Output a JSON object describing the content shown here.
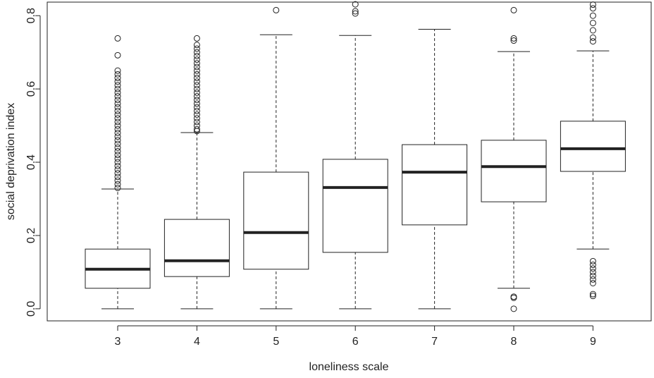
{
  "chart_data": {
    "type": "box",
    "x_label": "loneliness scale",
    "y_label": "social deprivation index",
    "categories": [
      "3",
      "4",
      "5",
      "6",
      "7",
      "8",
      "9"
    ],
    "boxes": [
      {
        "whislo": 0,
        "q1": 0.056,
        "med": 0.108,
        "q3": 0.163,
        "whishi": 0.327,
        "fliers": [
          0.33,
          0.34,
          0.35,
          0.36,
          0.37,
          0.38,
          0.39,
          0.4,
          0.41,
          0.42,
          0.43,
          0.44,
          0.45,
          0.46,
          0.47,
          0.48,
          0.49,
          0.5,
          0.51,
          0.52,
          0.53,
          0.54,
          0.55,
          0.56,
          0.57,
          0.58,
          0.59,
          0.6,
          0.61,
          0.62,
          0.63,
          0.64,
          0.65,
          0.692,
          0.738
        ]
      },
      {
        "whislo": 0,
        "q1": 0.088,
        "med": 0.131,
        "q3": 0.244,
        "whishi": 0.481,
        "fliers": [
          0.485,
          0.49,
          0.5,
          0.51,
          0.52,
          0.53,
          0.54,
          0.55,
          0.56,
          0.57,
          0.58,
          0.59,
          0.6,
          0.61,
          0.62,
          0.63,
          0.64,
          0.65,
          0.66,
          0.67,
          0.68,
          0.69,
          0.7,
          0.71,
          0.72,
          0.738
        ]
      },
      {
        "whislo": 0,
        "q1": 0.108,
        "med": 0.208,
        "q3": 0.373,
        "whishi": 0.748,
        "fliers": [
          0.815
        ]
      },
      {
        "whislo": 0,
        "q1": 0.154,
        "med": 0.331,
        "q3": 0.408,
        "whishi": 0.746,
        "fliers": [
          0.806,
          0.812,
          0.831
        ]
      },
      {
        "whislo": 0,
        "q1": 0.229,
        "med": 0.373,
        "q3": 0.448,
        "whishi": 0.763,
        "fliers": []
      },
      {
        "whislo": 0.056,
        "q1": 0.292,
        "med": 0.388,
        "q3": 0.46,
        "whishi": 0.702,
        "fliers": [
          0.815,
          0.738,
          0.732,
          0.033,
          0.03,
          0
        ]
      },
      {
        "whislo": 0.163,
        "q1": 0.375,
        "med": 0.437,
        "q3": 0.512,
        "whishi": 0.704,
        "fliers": [
          0.73,
          0.74,
          0.76,
          0.78,
          0.8,
          0.82,
          0.83,
          0.13,
          0.12,
          0.11,
          0.1,
          0.09,
          0.08,
          0.07,
          0.04,
          0.035
        ]
      }
    ],
    "ylim": [
      -0.033,
      0.837
    ],
    "yticks": [
      {
        "value": 0,
        "label": "0.0"
      },
      0.2,
      0.4,
      0.6,
      0.8
    ],
    "color": "#ffffff"
  }
}
